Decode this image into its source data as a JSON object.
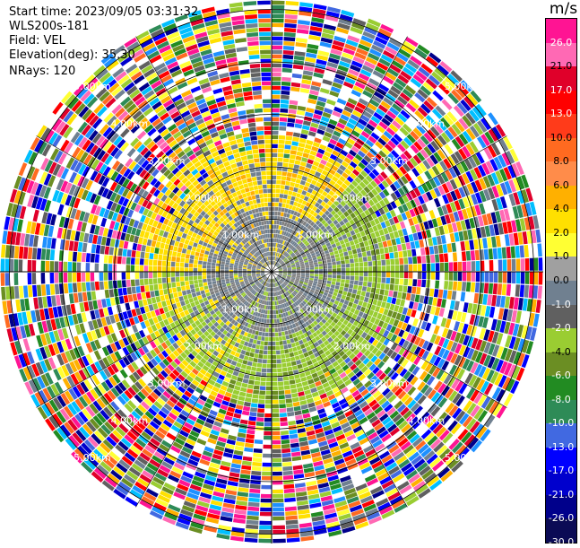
{
  "header": {
    "start_time": "Start time: 2023/09/05 03:31:32",
    "instrument": "WLS200s-181",
    "field": "Field: VEL",
    "elevation": "Elevation(deg): 35.30",
    "nrays": "NRays: 120"
  },
  "colorbar": {
    "unit": "m/s",
    "ticks": [
      "26.0",
      "21.0",
      "17.0",
      "13.0",
      "10.0",
      "8.0",
      "6.0",
      "4.0",
      "2.0",
      "1.0",
      "0.0",
      "-1.0",
      "-2.0",
      "-4.0",
      "-6.0",
      "-8.0",
      "-10.0",
      "-13.0",
      "-17.0",
      "-21.0",
      "-26.0",
      "-30.0"
    ],
    "colors": [
      "#ff1493",
      "#ff69b4",
      "#e0002a",
      "#ff0000",
      "#ff3b1a",
      "#ff6a20",
      "#ff8c4a",
      "#ffb000",
      "#ffe000",
      "#ffff33",
      "#a0a0a0",
      "#708090",
      "#606060",
      "#9acd32",
      "#6b8e23",
      "#228b22",
      "#2e8b57",
      "#4169e1",
      "#0000ff",
      "#0000cd",
      "#00008b",
      "#0b0b55"
    ]
  },
  "chart_data": {
    "type": "heatmap",
    "title": "",
    "plot_style": "PPI radial velocity scan",
    "rings_km": [
      1,
      2,
      3,
      4,
      5
    ],
    "ring_label": "km",
    "ring_labels": [
      "1.00km",
      "2.00km",
      "3.00km",
      "4.00km",
      "5.00km"
    ],
    "label_angles_deg": [
      45,
      135,
      225,
      315
    ],
    "nrays": 120,
    "colorscale_ms": [
      -30,
      -26,
      -21,
      -17,
      -13,
      -10,
      -8,
      -6,
      -4,
      -2,
      -1,
      0,
      1,
      2,
      4,
      6,
      8,
      10,
      13,
      17,
      21,
      26
    ],
    "grid": true,
    "legend": "right colorbar"
  }
}
